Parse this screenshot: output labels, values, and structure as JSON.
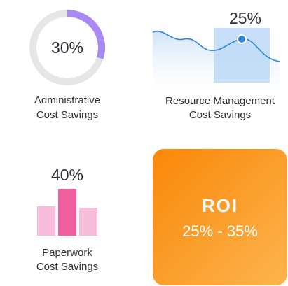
{
  "admin": {
    "value": 30,
    "label": "30%",
    "title_line1": "Administrative",
    "title_line2": "Cost Savings"
  },
  "resource": {
    "label": "25%",
    "title_line1": "Resource Management",
    "title_line2": "Cost Savings"
  },
  "paperwork": {
    "label": "40%",
    "title_line1": "Paperwork",
    "title_line2": "Cost Savings"
  },
  "roi": {
    "title": "ROI",
    "range": "25% - 35%"
  }
}
